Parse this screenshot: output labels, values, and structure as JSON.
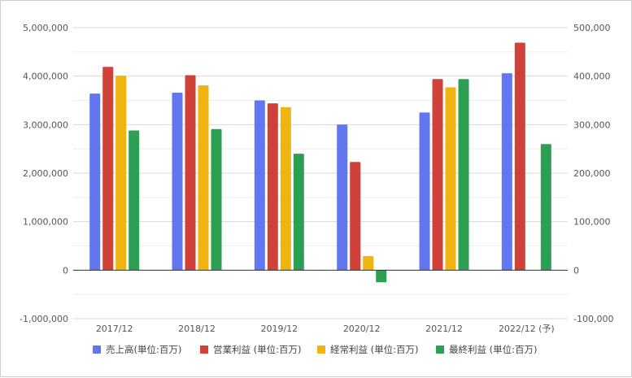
{
  "chart_data": {
    "type": "bar",
    "categories": [
      "2017/12",
      "2018/12",
      "2019/12",
      "2020/12",
      "2021/12",
      "2022/12 (予)"
    ],
    "series": [
      {
        "name": "売上高(単位:百万)",
        "axis": "left",
        "color": "#6176ef",
        "values": [
          3640000,
          3660000,
          3500000,
          3000000,
          3250000,
          4060000
        ]
      },
      {
        "name": "営業利益 (単位:百万)",
        "axis": "right",
        "color": "#d0413a",
        "values": [
          419000,
          402000,
          344000,
          223000,
          394000,
          469000
        ]
      },
      {
        "name": "経常利益 (単位:百万)",
        "axis": "right",
        "color": "#efb40f",
        "values": [
          401000,
          381000,
          336000,
          29000,
          377000,
          null
        ]
      },
      {
        "name": "最終利益 (単位:百万)",
        "axis": "right",
        "color": "#2ba052",
        "values": [
          288000,
          291000,
          240000,
          -25000,
          394000,
          260000
        ]
      }
    ],
    "y_left": {
      "min": -1000000,
      "max": 5000000,
      "ticks": [
        "-1,000,000",
        "0",
        "1,000,000",
        "2,000,000",
        "3,000,000",
        "4,000,000",
        "5,000,000"
      ]
    },
    "y_right": {
      "min": -100000,
      "max": 500000,
      "ticks": [
        "-100,000",
        "0",
        "100,000",
        "200,000",
        "300,000",
        "400,000",
        "500,000"
      ]
    },
    "grid": true,
    "legend_position": "bottom"
  }
}
